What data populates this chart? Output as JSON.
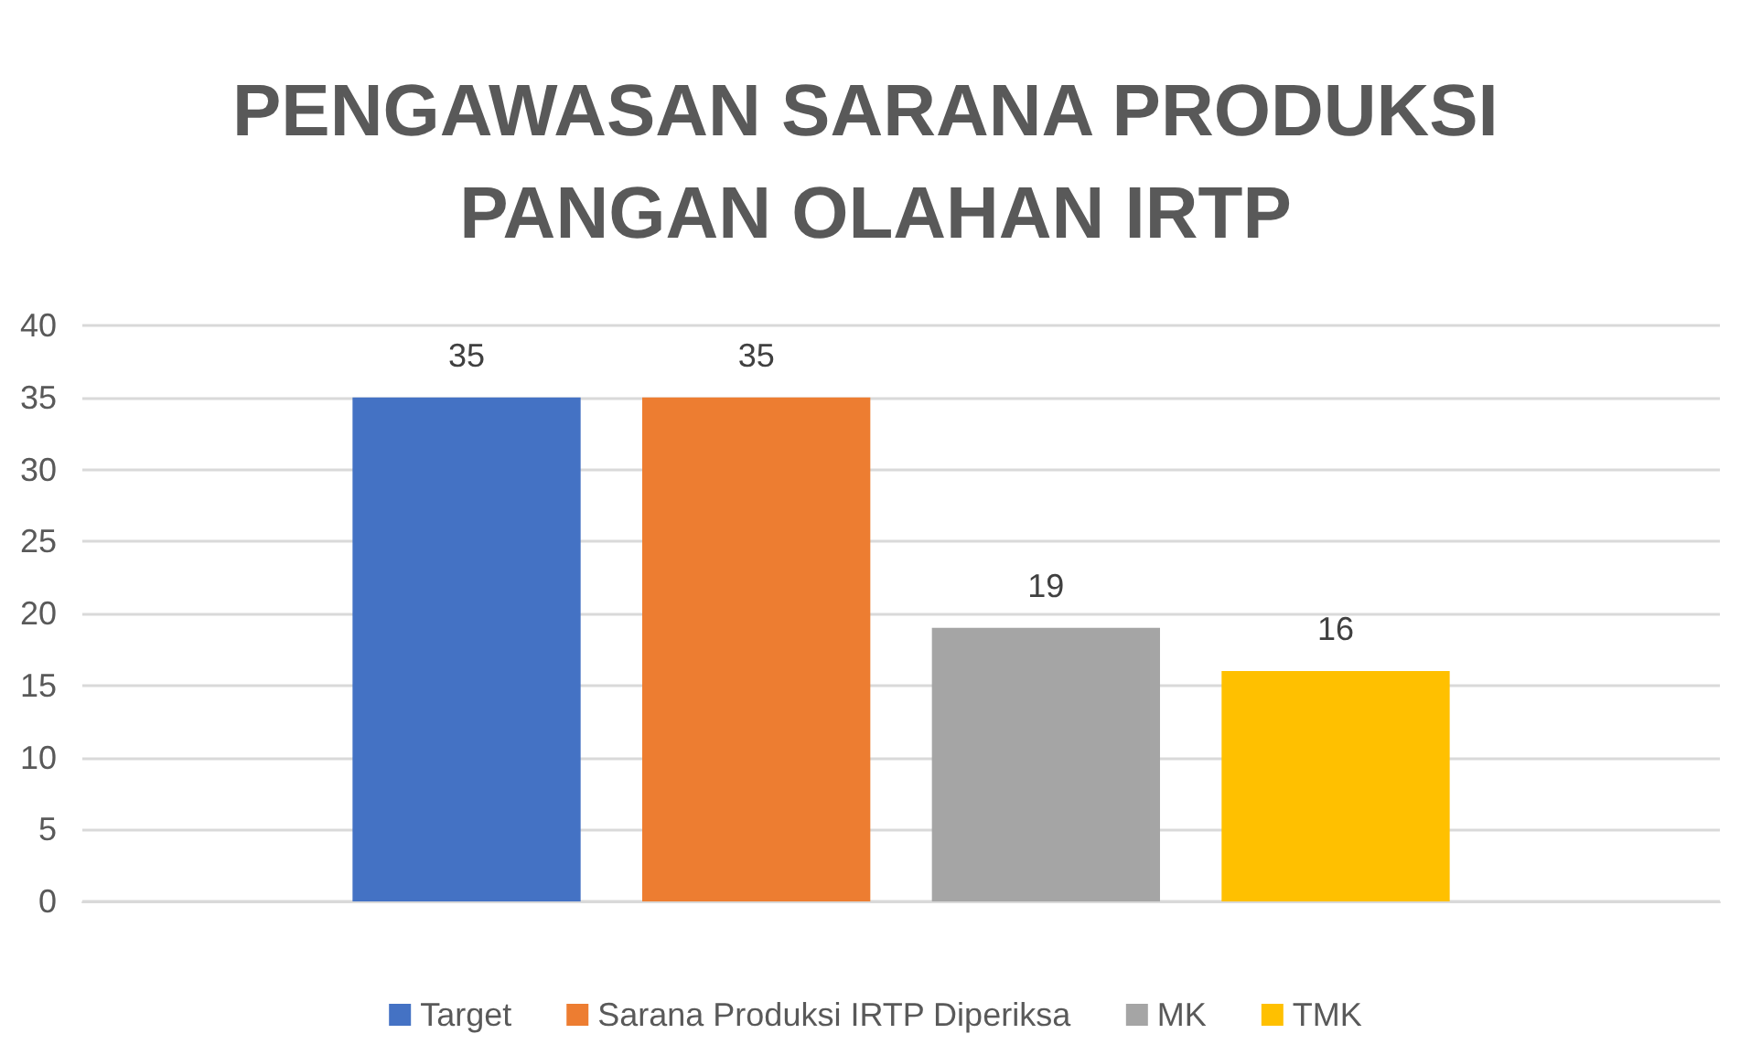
{
  "chart_data": {
    "type": "bar",
    "title": "PENGAWASAN SARANA PRODUKSI PANGAN OLAHAN IRTP",
    "categories": [
      null
    ],
    "series": [
      {
        "name": "Target",
        "color": "#4472c4",
        "values": [
          35
        ]
      },
      {
        "name": "Sarana Produksi IRTP Diperiksa",
        "color": "#ed7d31",
        "values": [
          35
        ]
      },
      {
        "name": "MK",
        "color": "#a5a5a5",
        "values": [
          19
        ]
      },
      {
        "name": "TMK",
        "color": "#ffc000",
        "values": [
          16
        ]
      }
    ],
    "ylim": [
      0,
      40
    ],
    "yticks": [
      0,
      5,
      10,
      15,
      20,
      25,
      30,
      35,
      40
    ],
    "grid": "y",
    "legend": "bottom",
    "data_labels": true
  }
}
